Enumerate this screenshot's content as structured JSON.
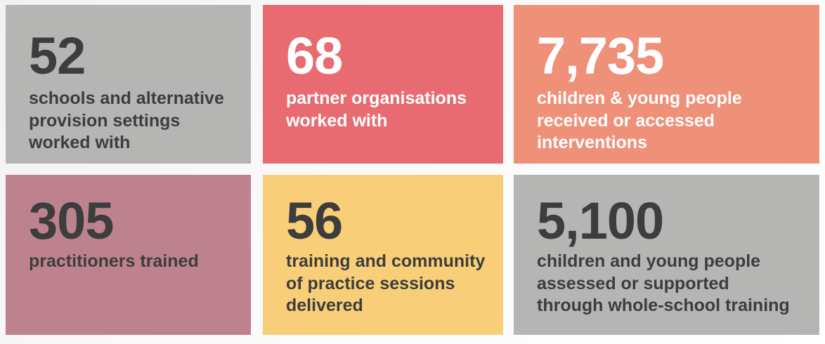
{
  "tiles": [
    {
      "number": "52",
      "text": "schools and alternative\nprovision settings\nworked with",
      "color": "#b5b5b3"
    },
    {
      "number": "68",
      "text": "partner organisations\nworked with",
      "color": "#e86b72"
    },
    {
      "number": "7,735",
      "text": "children & young people\nreceived or accessed\ninterventions",
      "color": "#ef9079"
    },
    {
      "number": "305",
      "text": "practitioners trained",
      "color": "#bd828d"
    },
    {
      "number": "56",
      "text": "training and community\nof practice sessions\ndelivered",
      "color": "#f8cf78"
    },
    {
      "number": "5,100",
      "text": "children and young people\nassessed or supported\nthrough whole-school training",
      "color": "#b5b5b3"
    }
  ]
}
